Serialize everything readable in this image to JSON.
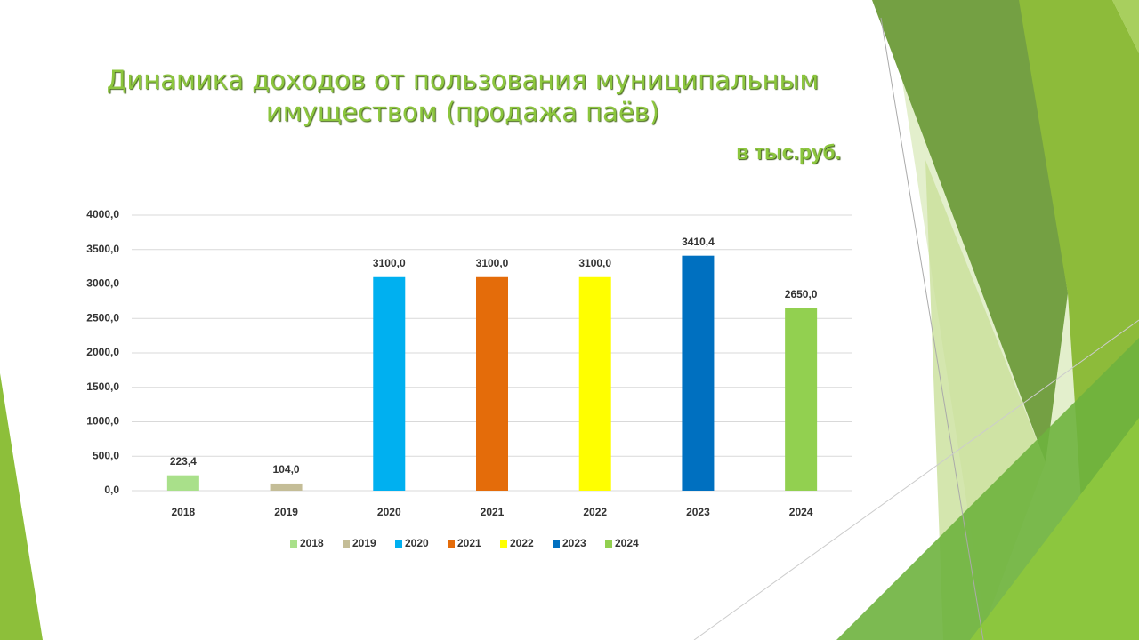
{
  "chart_data": {
    "type": "bar",
    "title": "Динамика доходов от пользования муниципальным имуществом (продажа паёв)",
    "subtitle": "в тыс.руб.",
    "categories": [
      "2018",
      "2019",
      "2020",
      "2021",
      "2022",
      "2023",
      "2024"
    ],
    "values": [
      223.4,
      104.0,
      3100.0,
      3100.0,
      3100.0,
      3410.4,
      2650.0
    ],
    "value_labels": [
      "223,4",
      "104,0",
      "3100,0",
      "3100,0",
      "3100,0",
      "3410,4",
      "2650,0"
    ],
    "colors": [
      "#a9e08a",
      "#c4bd97",
      "#00b0f0",
      "#e46c0a",
      "#ffff00",
      "#0070c0",
      "#92d050"
    ],
    "ylim": [
      0,
      4000
    ],
    "yticks": [
      {
        "value": 0,
        "label": "0,0"
      },
      {
        "value": 500,
        "label": "500,0"
      },
      {
        "value": 1000,
        "label": "1000,0"
      },
      {
        "value": 1500,
        "label": "1500,0"
      },
      {
        "value": 2000,
        "label": "2000,0"
      },
      {
        "value": 2500,
        "label": "2500,0"
      },
      {
        "value": 3000,
        "label": "3000,0"
      },
      {
        "value": 3500,
        "label": "3500,0"
      },
      {
        "value": 4000,
        "label": "4000,0"
      }
    ],
    "grid": true,
    "legend": "bottom"
  }
}
